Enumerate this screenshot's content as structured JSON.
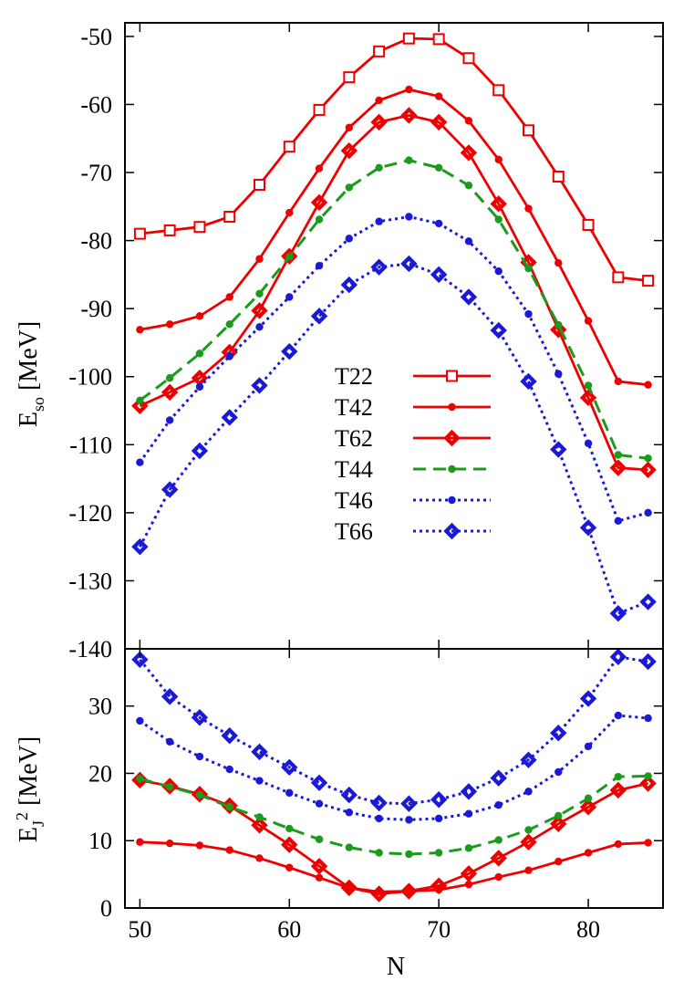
{
  "chart_data": [
    {
      "type": "line",
      "panel": "top",
      "xlabel": "",
      "ylabel_main": "E",
      "ylabel_sub": "so",
      "ylabel_unit": " [MeV]",
      "xlim": [
        49,
        85
      ],
      "ylim": [
        -140,
        -48
      ],
      "yticks": [
        -140,
        -130,
        -120,
        -110,
        -100,
        -90,
        -80,
        -70,
        -60,
        -50
      ],
      "xticks": [
        50,
        60,
        70,
        80
      ],
      "grid": false,
      "legend_position": "center-left",
      "x": [
        50,
        52,
        54,
        56,
        58,
        60,
        62,
        64,
        66,
        68,
        70,
        72,
        74,
        76,
        78,
        80,
        82,
        84
      ],
      "series": [
        {
          "name": "T22",
          "color": "#ee0000",
          "dash": "solid",
          "marker": "open-square",
          "values": [
            -79,
            -78.5,
            -78,
            -76.5,
            -71.8,
            -66.2,
            -60.8,
            -56,
            -52.2,
            -50.3,
            -50.4,
            -53.2,
            -57.9,
            -63.8,
            -70.6,
            -77.7,
            -85.4,
            -85.9
          ]
        },
        {
          "name": "T42",
          "color": "#ee0000",
          "dash": "solid",
          "marker": "filled-circle",
          "values": [
            -93.1,
            -92.3,
            -91.1,
            -88.3,
            -82.7,
            -75.9,
            -69.4,
            -63.4,
            -59.4,
            -57.8,
            -58.8,
            -62.4,
            -68.1,
            -75.3,
            -83.3,
            -91.8,
            -100.7,
            -101.2
          ]
        },
        {
          "name": "T62",
          "color": "#ee0000",
          "dash": "solid",
          "marker": "open-diamond",
          "values": [
            -104.3,
            -102.3,
            -100.2,
            -96.4,
            -90.3,
            -82.3,
            -74.4,
            -66.8,
            -62.6,
            -61.6,
            -62.6,
            -67.1,
            -74.6,
            -83.2,
            -93.1,
            -103.1,
            -113.4,
            -113.7
          ]
        },
        {
          "name": "T44",
          "color": "#1c9a1c",
          "dash": "dashed",
          "marker": "filled-circle",
          "values": [
            -103.5,
            -100.2,
            -96.6,
            -92.3,
            -87.8,
            -82.4,
            -76.9,
            -72.2,
            -69.3,
            -68.2,
            -69.3,
            -71.9,
            -76.9,
            -84.1,
            -92.4,
            -101.3,
            -111.5,
            -112
          ]
        },
        {
          "name": "T46",
          "color": "#1a1ad6",
          "dash": "dotted",
          "marker": "filled-circle",
          "values": [
            -112.6,
            -106.4,
            -101.5,
            -97,
            -92.7,
            -88.3,
            -83.7,
            -79.7,
            -77.2,
            -76.5,
            -77.5,
            -80.1,
            -84.5,
            -90.8,
            -99.6,
            -109.8,
            -121.2,
            -120
          ]
        },
        {
          "name": "T66",
          "color": "#1a1ad6",
          "dash": "dotted",
          "marker": "open-diamond",
          "values": [
            -125,
            -116.6,
            -110.9,
            -106,
            -101.3,
            -96.3,
            -91.1,
            -86.5,
            -83.9,
            -83.4,
            -85,
            -88.3,
            -93.2,
            -100.7,
            -110.7,
            -122.2,
            -134.8,
            -133.1
          ]
        }
      ],
      "legend_order": [
        "T22",
        "T42",
        "T62",
        "T44",
        "T46",
        "T66"
      ]
    },
    {
      "type": "line",
      "panel": "bottom",
      "xlabel": "N",
      "ylabel_main": "E",
      "ylabel_sub": "J",
      "ylabel_sup": "2",
      "ylabel_unit": " [MeV]",
      "xlim": [
        49,
        85
      ],
      "ylim": [
        0,
        38.5
      ],
      "yticks": [
        0,
        10,
        20,
        30
      ],
      "xticks": [
        50,
        60,
        70,
        80
      ],
      "grid": false,
      "x": [
        50,
        52,
        54,
        56,
        58,
        60,
        62,
        64,
        66,
        68,
        70,
        72,
        74,
        76,
        78,
        80,
        82,
        84
      ],
      "series": [
        {
          "name": "T42",
          "color": "#ee0000",
          "dash": "solid",
          "marker": "filled-circle",
          "values": [
            9.8,
            9.6,
            9.3,
            8.6,
            7.4,
            6,
            4.5,
            3,
            2.4,
            2.5,
            2.7,
            3.5,
            4.6,
            5.6,
            6.9,
            8.2,
            9.5,
            9.7
          ]
        },
        {
          "name": "T62",
          "color": "#ee0000",
          "dash": "solid",
          "marker": "open-diamond",
          "values": [
            19,
            18.1,
            16.9,
            15.2,
            12.3,
            9.4,
            6.2,
            3,
            2.1,
            2.5,
            3.3,
            5.1,
            7.4,
            9.8,
            12.5,
            15,
            17.5,
            18.5
          ]
        },
        {
          "name": "T44",
          "color": "#1c9a1c",
          "dash": "dashed",
          "marker": "filled-circle",
          "values": [
            19.2,
            18,
            16.8,
            15,
            13.5,
            11.8,
            10.2,
            9,
            8.2,
            8,
            8.2,
            8.9,
            10.1,
            11.6,
            13.7,
            16.3,
            19.5,
            19.6
          ]
        },
        {
          "name": "T46",
          "color": "#1a1ad6",
          "dash": "dotted",
          "marker": "filled-circle",
          "values": [
            27.8,
            24.7,
            22.5,
            20.6,
            18.9,
            17.1,
            15.5,
            14.2,
            13.3,
            13.1,
            13.3,
            14,
            15.3,
            17.3,
            20.2,
            24,
            28.6,
            28.2
          ]
        },
        {
          "name": "T66",
          "color": "#1a1ad6",
          "dash": "dotted",
          "marker": "open-diamond",
          "values": [
            36.9,
            31.4,
            28.3,
            25.6,
            23.2,
            20.9,
            18.6,
            16.8,
            15.6,
            15.5,
            16.1,
            17.3,
            19.3,
            22,
            26,
            31.1,
            37.3,
            36.6
          ]
        }
      ]
    }
  ]
}
